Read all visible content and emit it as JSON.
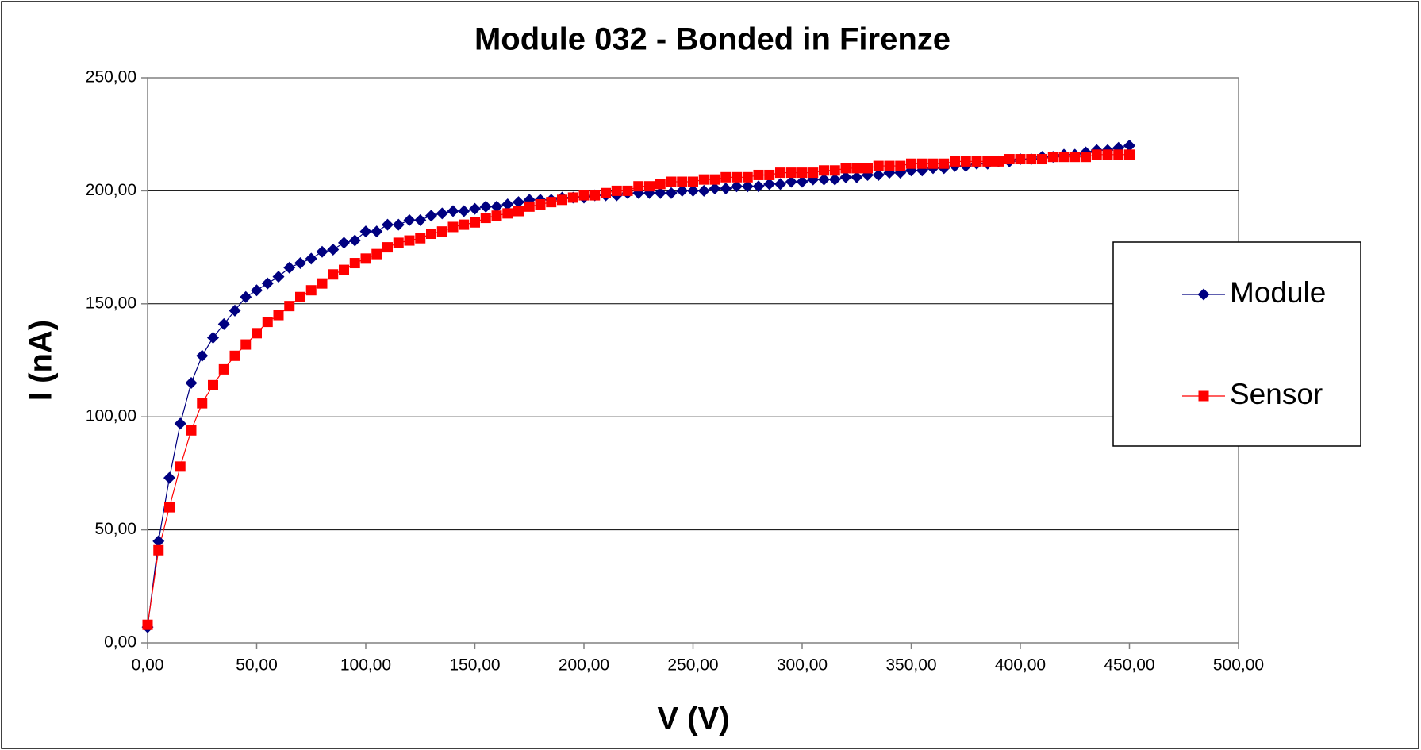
{
  "chart_data": {
    "type": "line",
    "title": "Module 032 - Bonded in Firenze",
    "xlabel": "V (V)",
    "ylabel": "I (nA)",
    "x": [
      0,
      5,
      10,
      15,
      20,
      25,
      30,
      35,
      40,
      45,
      50,
      55,
      60,
      65,
      70,
      75,
      80,
      85,
      90,
      95,
      100,
      105,
      110,
      115,
      120,
      125,
      130,
      135,
      140,
      145,
      150,
      155,
      160,
      165,
      170,
      175,
      180,
      185,
      190,
      195,
      200,
      205,
      210,
      215,
      220,
      225,
      230,
      235,
      240,
      245,
      250,
      255,
      260,
      265,
      270,
      275,
      280,
      285,
      290,
      295,
      300,
      305,
      310,
      315,
      320,
      325,
      330,
      335,
      340,
      345,
      350,
      355,
      360,
      365,
      370,
      375,
      380,
      385,
      390,
      395,
      400,
      405,
      410,
      415,
      420,
      425,
      430,
      435,
      440,
      445,
      450
    ],
    "series": [
      {
        "name": "Module",
        "color": "#000080",
        "marker": "diamond",
        "values": [
          7,
          45,
          73,
          97,
          115,
          127,
          135,
          141,
          147,
          153,
          156,
          159,
          162,
          166,
          168,
          170,
          173,
          174,
          177,
          178,
          182,
          182,
          185,
          185,
          187,
          187,
          189,
          190,
          191,
          191,
          192,
          193,
          193,
          194,
          195,
          196,
          196,
          196,
          197,
          197,
          197,
          198,
          198,
          198,
          199,
          199,
          199,
          199,
          199,
          200,
          200,
          200,
          201,
          201,
          202,
          202,
          202,
          203,
          203,
          204,
          204,
          205,
          205,
          205,
          206,
          206,
          207,
          207,
          208,
          208,
          209,
          209,
          210,
          210,
          211,
          211,
          212,
          212,
          213,
          213,
          214,
          214,
          215,
          215,
          216,
          216,
          217,
          218,
          218,
          219,
          220
        ]
      },
      {
        "name": "Sensor",
        "color": "#ff0000",
        "marker": "square",
        "values": [
          8,
          41,
          60,
          78,
          94,
          106,
          114,
          121,
          127,
          132,
          137,
          142,
          145,
          149,
          153,
          156,
          159,
          163,
          165,
          168,
          170,
          172,
          175,
          177,
          178,
          179,
          181,
          182,
          184,
          185,
          186,
          188,
          189,
          190,
          191,
          193,
          194,
          195,
          196,
          197,
          198,
          198,
          199,
          200,
          200,
          202,
          202,
          203,
          204,
          204,
          204,
          205,
          205,
          206,
          206,
          206,
          207,
          207,
          208,
          208,
          208,
          208,
          209,
          209,
          210,
          210,
          210,
          211,
          211,
          211,
          212,
          212,
          212,
          212,
          213,
          213,
          213,
          213,
          213,
          214,
          214,
          214,
          214,
          215,
          215,
          215,
          215,
          216,
          216,
          216,
          216
        ]
      }
    ],
    "xlim": [
      0,
      500
    ],
    "ylim": [
      0,
      250
    ],
    "xticks": [
      {
        "value": 0,
        "label": "0,00"
      },
      {
        "value": 50,
        "label": "50,00"
      },
      {
        "value": 100,
        "label": "100,00"
      },
      {
        "value": 150,
        "label": "150,00"
      },
      {
        "value": 200,
        "label": "200,00"
      },
      {
        "value": 250,
        "label": "250,00"
      },
      {
        "value": 300,
        "label": "300,00"
      },
      {
        "value": 350,
        "label": "350,00"
      },
      {
        "value": 400,
        "label": "400,00"
      },
      {
        "value": 450,
        "label": "450,00"
      },
      {
        "value": 500,
        "label": "500,00"
      }
    ],
    "yticks": [
      {
        "value": 0,
        "label": "0,00"
      },
      {
        "value": 50,
        "label": "50,00"
      },
      {
        "value": 100,
        "label": "100,00"
      },
      {
        "value": 150,
        "label": "150,00"
      },
      {
        "value": 200,
        "label": "200,00"
      },
      {
        "value": 250,
        "label": "250,00"
      }
    ],
    "grid": true,
    "legend": "right"
  }
}
